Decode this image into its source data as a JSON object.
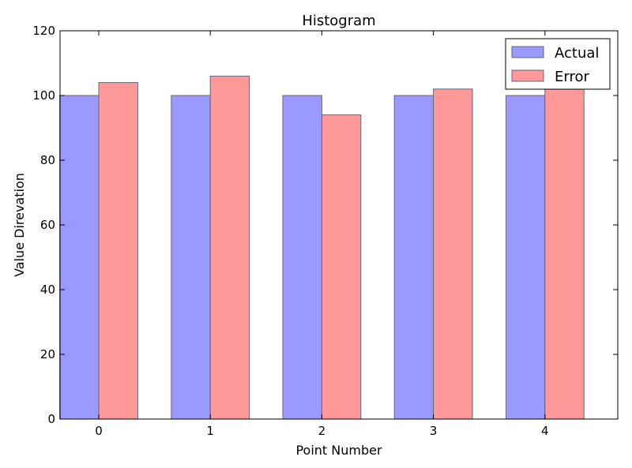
{
  "chart_data": {
    "type": "bar",
    "title": "Histogram",
    "xlabel": "Point Number",
    "ylabel": "Value Direvation",
    "categories": [
      "0",
      "1",
      "2",
      "3",
      "4"
    ],
    "series": [
      {
        "name": "Actual",
        "values": [
          100,
          100,
          100,
          100,
          100
        ],
        "color": "#9999ff"
      },
      {
        "name": "Error",
        "values": [
          104,
          106,
          94,
          102,
          103
        ],
        "color": "#ff9999"
      }
    ],
    "ylim": [
      0,
      120
    ],
    "yticks": [
      0,
      20,
      40,
      60,
      80,
      100,
      120
    ],
    "grid": false,
    "legend_position": "top-right"
  }
}
